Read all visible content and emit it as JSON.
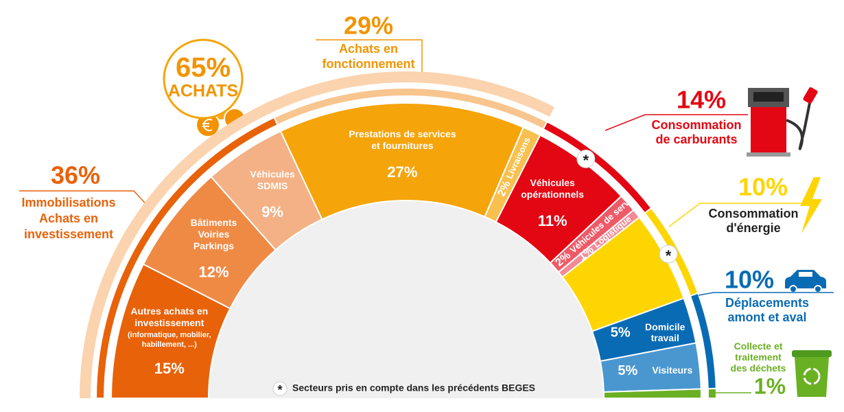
{
  "chart_data": {
    "type": "semi-donut",
    "categories": [
      "Autres achats en\ninvestissement",
      "Bâtiments\nVoiries\nParkings",
      "Véhicules\nSDMIS",
      "Prestations de services\net fournitures",
      "Livraisons",
      "Véhicules\nopérationnels",
      "Véhicules\nde service",
      "Logistique",
      null,
      "Domicile\ntravail",
      "Visiteurs",
      null
    ],
    "category_details": [
      "(informatique, mobilier,\nhabillement, ...)",
      null,
      null,
      null,
      null,
      null,
      null,
      null,
      null,
      null,
      null,
      null
    ],
    "values": [
      15,
      12,
      9,
      27,
      2,
      11,
      2,
      1,
      10,
      5,
      5,
      1
    ],
    "value_labels": [
      "15%",
      "12%",
      "9%",
      "27%",
      "2%",
      "11%",
      "2%",
      "1%",
      null,
      "5%",
      "5%",
      null
    ],
    "colors": [
      "#e8620a",
      "#ef8a45",
      "#f4b185",
      "#f5a40a",
      "#f8c04e",
      "#e30613",
      "#ef5a68",
      "#f48a95",
      "#ffd500",
      "#0a6bb5",
      "#4a97d0",
      "#6ab023"
    ],
    "starred": [
      false,
      false,
      false,
      false,
      false,
      true,
      false,
      false,
      true,
      false,
      false,
      false
    ],
    "groups": [
      {
        "name": "Immobilisations\nAchats en\ninvestissement",
        "value": 36,
        "value_label": "36%",
        "color": "#e8620a",
        "text_color": "#e8620a"
      },
      {
        "name": "Achats en\nfonctionnement",
        "value": 29,
        "value_label": "29%",
        "color": "#f8c58f",
        "text_color": "#f29400"
      },
      {
        "name": "Consommation\nde carburants",
        "value": 14,
        "value_label": "14%",
        "color": "#e30613",
        "text_color": "#e30613"
      },
      {
        "name": "Consommation\nd'énergie",
        "value": 10,
        "value_label": "10%",
        "color": "#ffd500",
        "text_color": "#222222"
      },
      {
        "name": "Déplacements\namont et aval",
        "value": 10,
        "value_label": "10%",
        "color": "#0a6bb5",
        "text_color": "#0a6bb5"
      },
      {
        "name": "Collecte et\ntraitement\ndes déchets",
        "value": 1,
        "value_label": "1%",
        "color": "#6ab023",
        "text_color": "#6ab023"
      }
    ],
    "super_group": {
      "name": "ACHATS",
      "value": 65,
      "value_label": "65%",
      "color": "#fbd3ae",
      "text_color": "#f29400"
    },
    "footnote": {
      "symbol": "*",
      "text": "Secteurs pris en compte dans les précédents BEGES"
    }
  }
}
